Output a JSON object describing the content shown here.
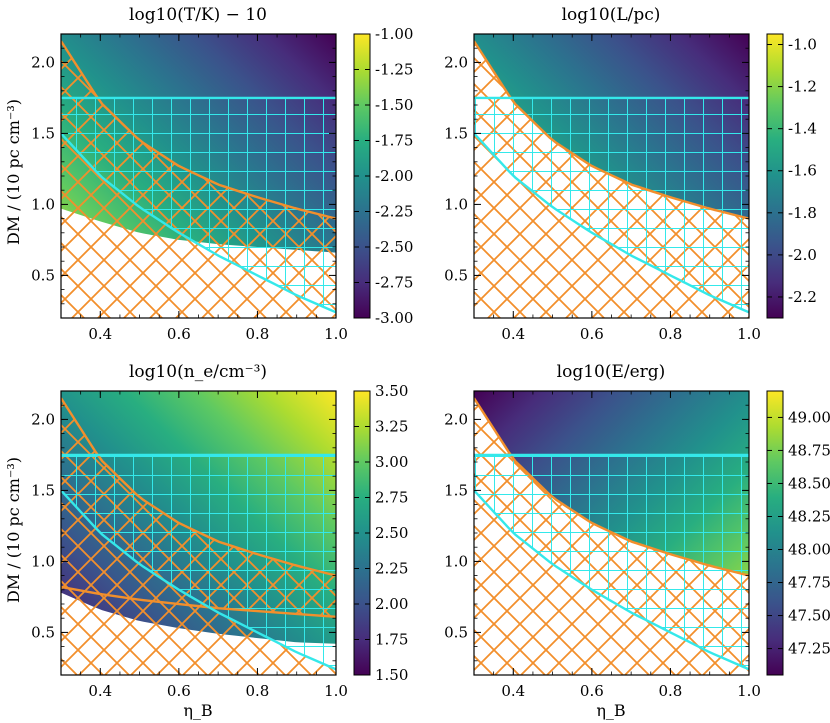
{
  "figure": {
    "ylabel": "DM / (10 pc cm⁻³)",
    "xlabel": "η_B"
  },
  "chart_data": [
    {
      "type": "heatmap",
      "title": "log10(T/K) − 10",
      "xlim": [
        0.3,
        1.0
      ],
      "ylim": [
        0.2,
        2.2
      ],
      "xticks": [
        "0.4",
        "0.6",
        "0.8",
        "1.0"
      ],
      "yticks": [
        "0.5",
        "1.0",
        "1.5",
        "2.0"
      ],
      "colorbar": {
        "range": [
          -3.0,
          -1.0
        ],
        "ticks": [
          "-1.00",
          "-1.25",
          "-1.50",
          "-1.75",
          "-2.00",
          "-2.25",
          "-2.50",
          "-2.75",
          "-3.00"
        ]
      },
      "high_value_corner": "bottom-left",
      "valid_region": "above inner boundary",
      "orange_hatch_region": "below orange boundary",
      "cyan_grid_region": "between cyan boundary and DM = 1.75",
      "boundaries": {
        "orange": {
          "x": [
            0.3,
            0.4,
            0.5,
            0.6,
            0.7,
            0.8,
            0.9,
            1.0
          ],
          "y": [
            2.15,
            1.72,
            1.45,
            1.27,
            1.14,
            1.05,
            0.97,
            0.9
          ]
        },
        "cyan": {
          "x": [
            0.3,
            0.4,
            0.5,
            0.6,
            0.7,
            0.8,
            0.9,
            1.0
          ],
          "y": [
            1.5,
            1.2,
            0.98,
            0.8,
            0.64,
            0.5,
            0.36,
            0.24
          ]
        },
        "cyan_top": 1.75,
        "inner": {
          "x": [
            0.3,
            0.4,
            0.5,
            0.6,
            0.7,
            0.8,
            0.9,
            1.0
          ],
          "y": [
            0.97,
            0.88,
            0.8,
            0.75,
            0.72,
            0.7,
            0.68,
            0.66
          ]
        }
      }
    },
    {
      "type": "heatmap",
      "title": "log10(L/pc)",
      "xlim": [
        0.3,
        1.0
      ],
      "ylim": [
        0.2,
        2.2
      ],
      "xticks": [
        "0.4",
        "0.6",
        "0.8",
        "1.0"
      ],
      "yticks": [
        "0.5",
        "1.0",
        "1.5",
        "2.0"
      ],
      "colorbar": {
        "range": [
          -2.3,
          -0.95
        ],
        "ticks": [
          "-1.0",
          "-1.2",
          "-1.4",
          "-1.6",
          "-1.8",
          "-2.0",
          "-2.2"
        ]
      },
      "high_value_corner": "bottom-left",
      "valid_region": "above orange boundary",
      "orange_hatch_region": "below orange boundary",
      "cyan_grid_region": "between cyan boundary and DM = 1.75",
      "boundaries": {
        "orange": {
          "x": [
            0.3,
            0.4,
            0.5,
            0.6,
            0.7,
            0.8,
            0.9,
            1.0
          ],
          "y": [
            2.15,
            1.72,
            1.45,
            1.27,
            1.14,
            1.05,
            0.97,
            0.9
          ]
        },
        "cyan": {
          "x": [
            0.3,
            0.4,
            0.5,
            0.6,
            0.7,
            0.8,
            0.9,
            1.0
          ],
          "y": [
            1.5,
            1.2,
            0.98,
            0.8,
            0.64,
            0.5,
            0.36,
            0.24
          ]
        },
        "cyan_top": 1.75
      }
    },
    {
      "type": "heatmap",
      "title": "log10(n_e/cm⁻³)",
      "xlim": [
        0.3,
        1.0
      ],
      "ylim": [
        0.2,
        2.2
      ],
      "xticks": [
        "0.4",
        "0.6",
        "0.8",
        "1.0"
      ],
      "yticks": [
        "0.5",
        "1.0",
        "1.5",
        "2.0"
      ],
      "colorbar": {
        "range": [
          1.5,
          3.5
        ],
        "ticks": [
          "3.50",
          "3.25",
          "3.00",
          "2.75",
          "2.50",
          "2.25",
          "2.00",
          "1.75",
          "1.50"
        ]
      },
      "high_value_corner": "top-right",
      "valid_region": "above inner boundary",
      "orange_hatch_region": "between upper and lower orange boundaries",
      "cyan_grid_region": "between cyan boundary and DM = 1.75",
      "boundaries": {
        "orange": {
          "x": [
            0.3,
            0.4,
            0.5,
            0.6,
            0.7,
            0.8,
            0.9,
            1.0
          ],
          "y": [
            2.15,
            1.72,
            1.45,
            1.27,
            1.14,
            1.05,
            0.97,
            0.9
          ]
        },
        "orange_lower": {
          "x": [
            0.3,
            0.4,
            0.5,
            0.6,
            0.7,
            0.8,
            0.9,
            1.0
          ],
          "y": [
            0.82,
            0.77,
            0.73,
            0.7,
            0.67,
            0.65,
            0.63,
            0.61
          ]
        },
        "cyan": {
          "x": [
            0.3,
            0.4,
            0.5,
            0.6,
            0.7,
            0.8,
            0.9,
            1.0
          ],
          "y": [
            1.5,
            1.2,
            0.98,
            0.8,
            0.64,
            0.5,
            0.36,
            0.24
          ]
        },
        "cyan_top": 1.75,
        "inner": {
          "x": [
            0.3,
            0.4,
            0.5,
            0.6,
            0.7,
            0.8,
            0.9,
            1.0
          ],
          "y": [
            0.78,
            0.66,
            0.58,
            0.53,
            0.49,
            0.46,
            0.43,
            0.42
          ]
        }
      }
    },
    {
      "type": "heatmap",
      "title": "log10(E/erg)",
      "xlim": [
        0.3,
        1.0
      ],
      "ylim": [
        0.2,
        2.2
      ],
      "xticks": [
        "0.4",
        "0.6",
        "0.8",
        "1.0"
      ],
      "yticks": [
        "0.5",
        "1.0",
        "1.5",
        "2.0"
      ],
      "colorbar": {
        "range": [
          47.05,
          49.2
        ],
        "ticks": [
          "49.00",
          "48.75",
          "48.50",
          "48.25",
          "48.00",
          "47.75",
          "47.50",
          "47.25"
        ]
      },
      "high_value_corner": "bottom-right",
      "valid_region": "above orange boundary",
      "orange_hatch_region": "below orange boundary",
      "cyan_grid_region": "between cyan boundary and DM = 1.75",
      "boundaries": {
        "orange": {
          "x": [
            0.3,
            0.4,
            0.5,
            0.6,
            0.7,
            0.8,
            0.9,
            1.0
          ],
          "y": [
            2.15,
            1.72,
            1.45,
            1.27,
            1.14,
            1.05,
            0.97,
            0.9
          ]
        },
        "cyan": {
          "x": [
            0.3,
            0.4,
            0.5,
            0.6,
            0.7,
            0.8,
            0.9,
            1.0
          ],
          "y": [
            1.5,
            1.2,
            0.98,
            0.8,
            0.64,
            0.5,
            0.36,
            0.24
          ]
        },
        "cyan_top": 1.75
      }
    }
  ]
}
